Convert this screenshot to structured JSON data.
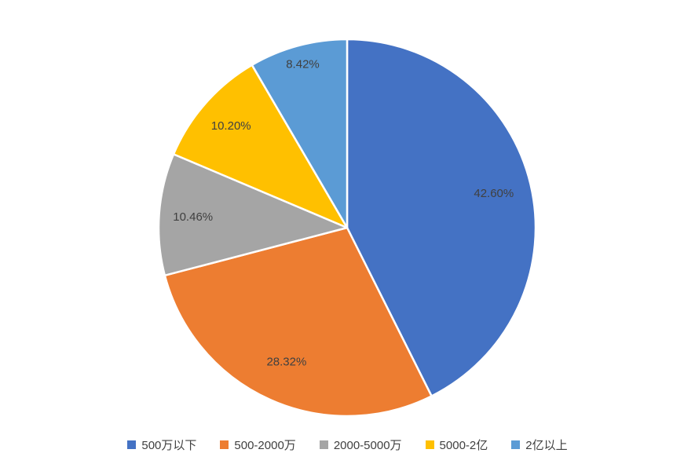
{
  "chart_data": {
    "type": "pie",
    "categories": [
      "500万以下",
      "500-2000万",
      "2000-5000万",
      "5000-2亿",
      "2亿以上"
    ],
    "values": [
      42.6,
      28.32,
      10.46,
      10.2,
      8.42
    ],
    "data_labels": [
      "42.60%",
      "28.32%",
      "10.46%",
      "10.20%",
      "8.42%"
    ],
    "colors": [
      "#4472C4",
      "#ED7D31",
      "#A5A5A5",
      "#FFC000",
      "#5B9BD5"
    ],
    "title": "",
    "legend_position": "bottom",
    "start_angle_deg": 0,
    "direction": "clockwise",
    "background": "#FFFFFF",
    "label_color": "#404040",
    "slice_border_color": "#FFFFFF"
  }
}
